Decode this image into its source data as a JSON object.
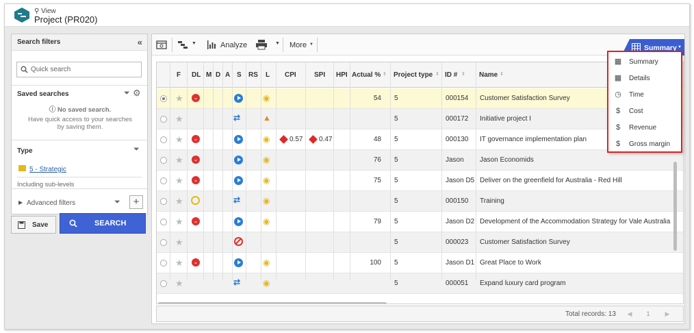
{
  "header": {
    "view_label": "View",
    "title": "Project (PR020)"
  },
  "filters": {
    "title": "Search filters",
    "quick_search_placeholder": "Quick search",
    "saved_searches_title": "Saved searches",
    "no_saved_title": "No saved search.",
    "no_saved_desc": "Have quick access to your searches by saving them.",
    "type_title": "Type",
    "type_value": "5 - Strategic",
    "including_sublevels": "Including sub-levels",
    "advanced_filters": "Advanced filters",
    "save_label": "Save",
    "search_label": "SEARCH"
  },
  "toolbar": {
    "analyze_label": "Analyze",
    "more_label": "More",
    "summary_label": "Summary"
  },
  "columns": [
    "F",
    "DL",
    "M",
    "D",
    "A",
    "S",
    "RS",
    "L",
    "CPI",
    "SPI",
    "HPI",
    "Actual %",
    "Project type",
    "ID #",
    "Name"
  ],
  "rows": [
    {
      "dl": "red",
      "s": "play",
      "l": "eye",
      "cpi": "",
      "spi": "",
      "actual": "54",
      "ptype": "5",
      "id": "000154",
      "name": "Customer Satisfaction Survey",
      "selected": true
    },
    {
      "dl": "",
      "s": "shuffle",
      "l": "org",
      "cpi": "",
      "spi": "",
      "actual": "",
      "ptype": "5",
      "id": "000172",
      "name": "Initiative project I"
    },
    {
      "dl": "red",
      "s": "play",
      "l": "eye",
      "cpi": "0.57",
      "spi": "0.47",
      "actual": "48",
      "ptype": "5",
      "id": "000130",
      "name": "IT governance implementation plan"
    },
    {
      "dl": "red",
      "s": "play",
      "l": "eye",
      "cpi": "",
      "spi": "",
      "actual": "76",
      "ptype": "5",
      "id": "Jason",
      "name": "Jason Economids"
    },
    {
      "dl": "red",
      "s": "play",
      "l": "eye",
      "cpi": "",
      "spi": "",
      "actual": "75",
      "ptype": "5",
      "id": "Jason D5",
      "name": "Deliver on the greenfield for Australia - Red Hill"
    },
    {
      "dl": "clock",
      "s": "shuffle",
      "l": "eye",
      "cpi": "",
      "spi": "",
      "actual": "",
      "ptype": "5",
      "id": "000150",
      "name": "Training"
    },
    {
      "dl": "red",
      "s": "play",
      "l": "eye",
      "cpi": "",
      "spi": "",
      "actual": "79",
      "ptype": "5",
      "id": "Jason D2",
      "name": "Development of the Accommodation Strategy for Vale Australia"
    },
    {
      "dl": "",
      "s": "stop",
      "l": "",
      "cpi": "",
      "spi": "",
      "actual": "",
      "ptype": "5",
      "id": "000023",
      "name": "Customer Satisfaction Survey"
    },
    {
      "dl": "red",
      "s": "play",
      "l": "eye",
      "cpi": "",
      "spi": "",
      "actual": "100",
      "ptype": "5",
      "id": "Jason D1",
      "name": "Great Place to Work"
    },
    {
      "dl": "",
      "s": "shuffle",
      "l": "eye",
      "cpi": "",
      "spi": "",
      "actual": "",
      "ptype": "5",
      "id": "000051",
      "name": "Expand luxury card program"
    }
  ],
  "footer": {
    "total_records": "Total records: 13",
    "page": "1"
  },
  "summary_menu": [
    {
      "label": "Summary",
      "icon": "grid-icon"
    },
    {
      "label": "Details",
      "icon": "table-icon"
    },
    {
      "label": "Time",
      "icon": "clock-icon"
    },
    {
      "label": "Cost",
      "icon": "coins-icon"
    },
    {
      "label": "Revenue",
      "icon": "coins-icon"
    },
    {
      "label": "Gross margin",
      "icon": "dollar-icon"
    }
  ]
}
